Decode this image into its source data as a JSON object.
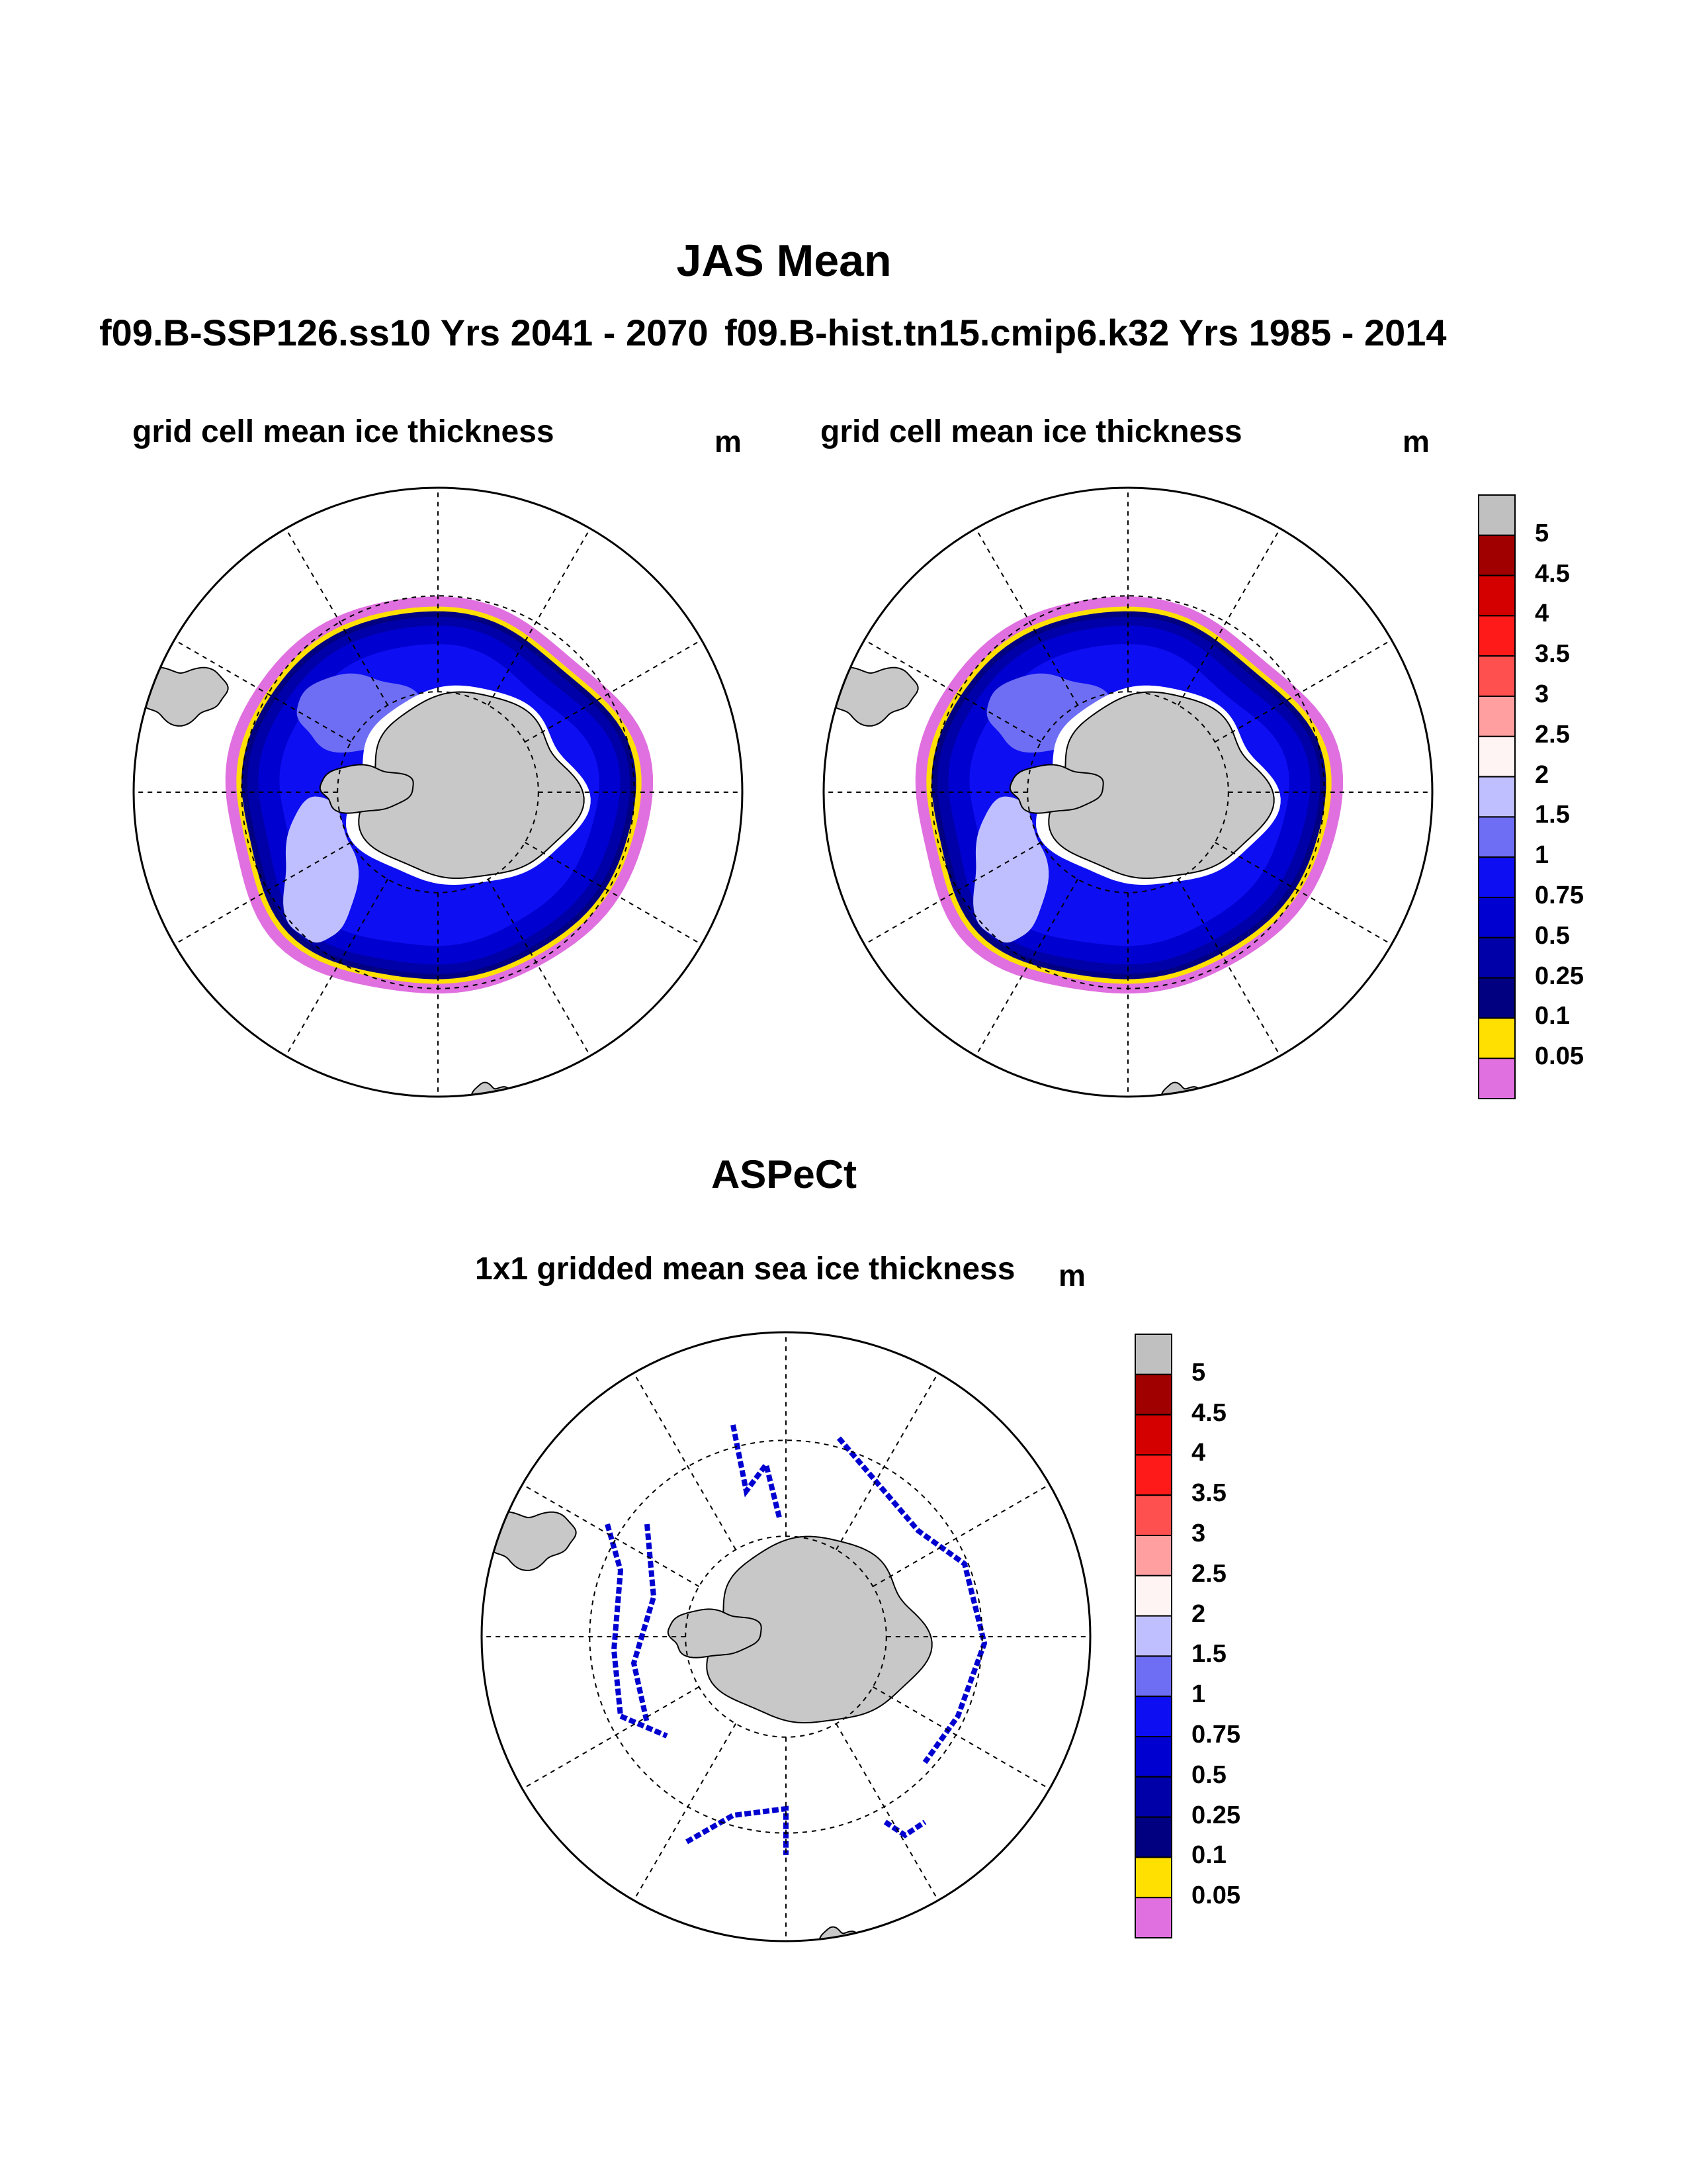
{
  "figure": {
    "main_title": "JAS Mean",
    "left_subtitle": "f09.B-SSP126.ss10  Yrs 2041 - 2070",
    "right_subtitle": "f09.B-hist.tn15.cmip6.k32  Yrs 1985 - 2014",
    "bottom_title": "ASPeCt"
  },
  "colorbar": {
    "levels": [
      "5",
      "4.5",
      "4",
      "3.5",
      "3",
      "2.5",
      "2",
      "1.5",
      "1",
      "0.75",
      "0.5",
      "0.25",
      "0.1",
      "0.05"
    ],
    "colors": [
      "#c0c0c0",
      "#a00000",
      "#d40000",
      "#ff1a1a",
      "#ff5050",
      "#ff9f9f",
      "#fff4f4",
      "#bfbfff",
      "#6e6ef5",
      "#0e0ef2",
      "#0000d0",
      "#0000a8",
      "#000080",
      "#ffe000",
      "#e070e0"
    ]
  },
  "chart_data": [
    {
      "type": "heatmap",
      "projection": "south-polar-stereographic",
      "title": "grid cell mean ice thickness",
      "unit": "m",
      "case": "f09.B-SSP126.ss10",
      "years": [
        2041,
        2070
      ],
      "season": "JAS",
      "color_levels": [
        0.05,
        0.1,
        0.25,
        0.5,
        0.75,
        1,
        1.5,
        2,
        2.5,
        3,
        3.5,
        4,
        4.5,
        5
      ],
      "ice_edge_colors": [
        "#e070e0",
        "#ffe000",
        "#000080"
      ],
      "dominant_thickness_range_m": [
        0.25,
        1.5
      ],
      "grid": true
    },
    {
      "type": "heatmap",
      "projection": "south-polar-stereographic",
      "title": "grid cell mean ice thickness",
      "unit": "m",
      "case": "f09.B-hist.tn15.cmip6.k32",
      "years": [
        1985,
        2014
      ],
      "season": "JAS",
      "color_levels": [
        0.05,
        0.1,
        0.25,
        0.5,
        0.75,
        1,
        1.5,
        2,
        2.5,
        3,
        3.5,
        4,
        4.5,
        5
      ],
      "ice_edge_colors": [
        "#e070e0",
        "#ffe000",
        "#000080"
      ],
      "dominant_thickness_range_m": [
        0.25,
        2
      ],
      "grid": true
    },
    {
      "type": "heatmap",
      "projection": "south-polar-stereographic",
      "title": "1x1 gridded mean sea ice thickness",
      "unit": "m",
      "dataset": "ASPeCt",
      "color_levels": [
        0.05,
        0.1,
        0.25,
        0.5,
        0.75,
        1,
        1.5,
        2,
        2.5,
        3,
        3.5,
        4,
        4.5,
        5
      ],
      "observations": "ship-track lines",
      "grid": true
    }
  ]
}
